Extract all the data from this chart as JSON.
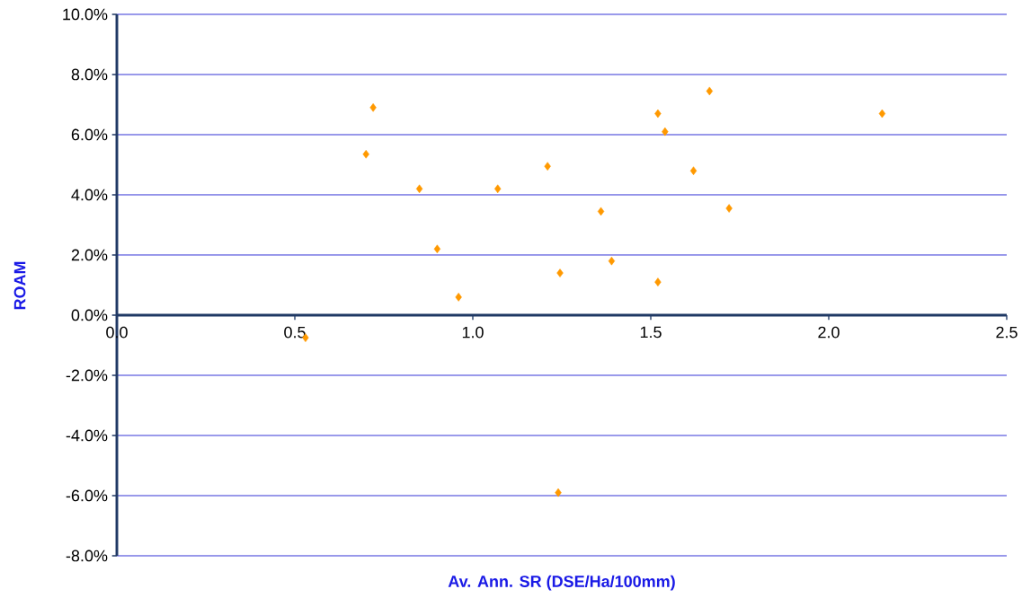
{
  "chart_data": {
    "type": "scatter",
    "xlabel": "Av. Ann. SR (DSE/Ha/100mm)",
    "ylabel": "ROAM",
    "x": [
      0.53,
      0.72,
      0.7,
      0.85,
      0.9,
      0.96,
      1.07,
      1.21,
      1.245,
      1.24,
      1.36,
      1.39,
      1.52,
      1.52,
      1.54,
      1.62,
      1.665,
      1.72,
      2.15
    ],
    "values": [
      -0.75,
      6.9,
      5.35,
      4.2,
      2.2,
      0.6,
      4.2,
      4.95,
      1.4,
      -5.9,
      3.45,
      1.8,
      6.7,
      1.1,
      6.1,
      4.8,
      7.45,
      3.55,
      6.7
    ],
    "color": "#ff9900",
    "marker": "diamond",
    "grid": "y",
    "xlim": [
      0,
      2.5
    ],
    "ylim": [
      -8,
      10
    ],
    "xticks": [
      {
        "value": 0,
        "label": "0.0"
      },
      {
        "value": 0.5,
        "label": "0.5"
      },
      {
        "value": 1,
        "label": "1.0"
      },
      {
        "value": 1.5,
        "label": "1.5"
      },
      {
        "value": 2,
        "label": "2.0"
      },
      {
        "value": 2.5,
        "label": "2.5"
      }
    ],
    "yticks": [
      {
        "value": -8,
        "label": "-8.0%"
      },
      {
        "value": -6,
        "label": "-6.0%"
      },
      {
        "value": -4,
        "label": "-4.0%"
      },
      {
        "value": -2,
        "label": "-2.0%"
      },
      {
        "value": 0,
        "label": "0.0%"
      },
      {
        "value": 2,
        "label": "2.0%"
      },
      {
        "value": 4,
        "label": "4.0%"
      },
      {
        "value": 6,
        "label": "6.0%"
      },
      {
        "value": 8,
        "label": "8.0%"
      },
      {
        "value": 10,
        "label": "10.0%"
      }
    ]
  }
}
